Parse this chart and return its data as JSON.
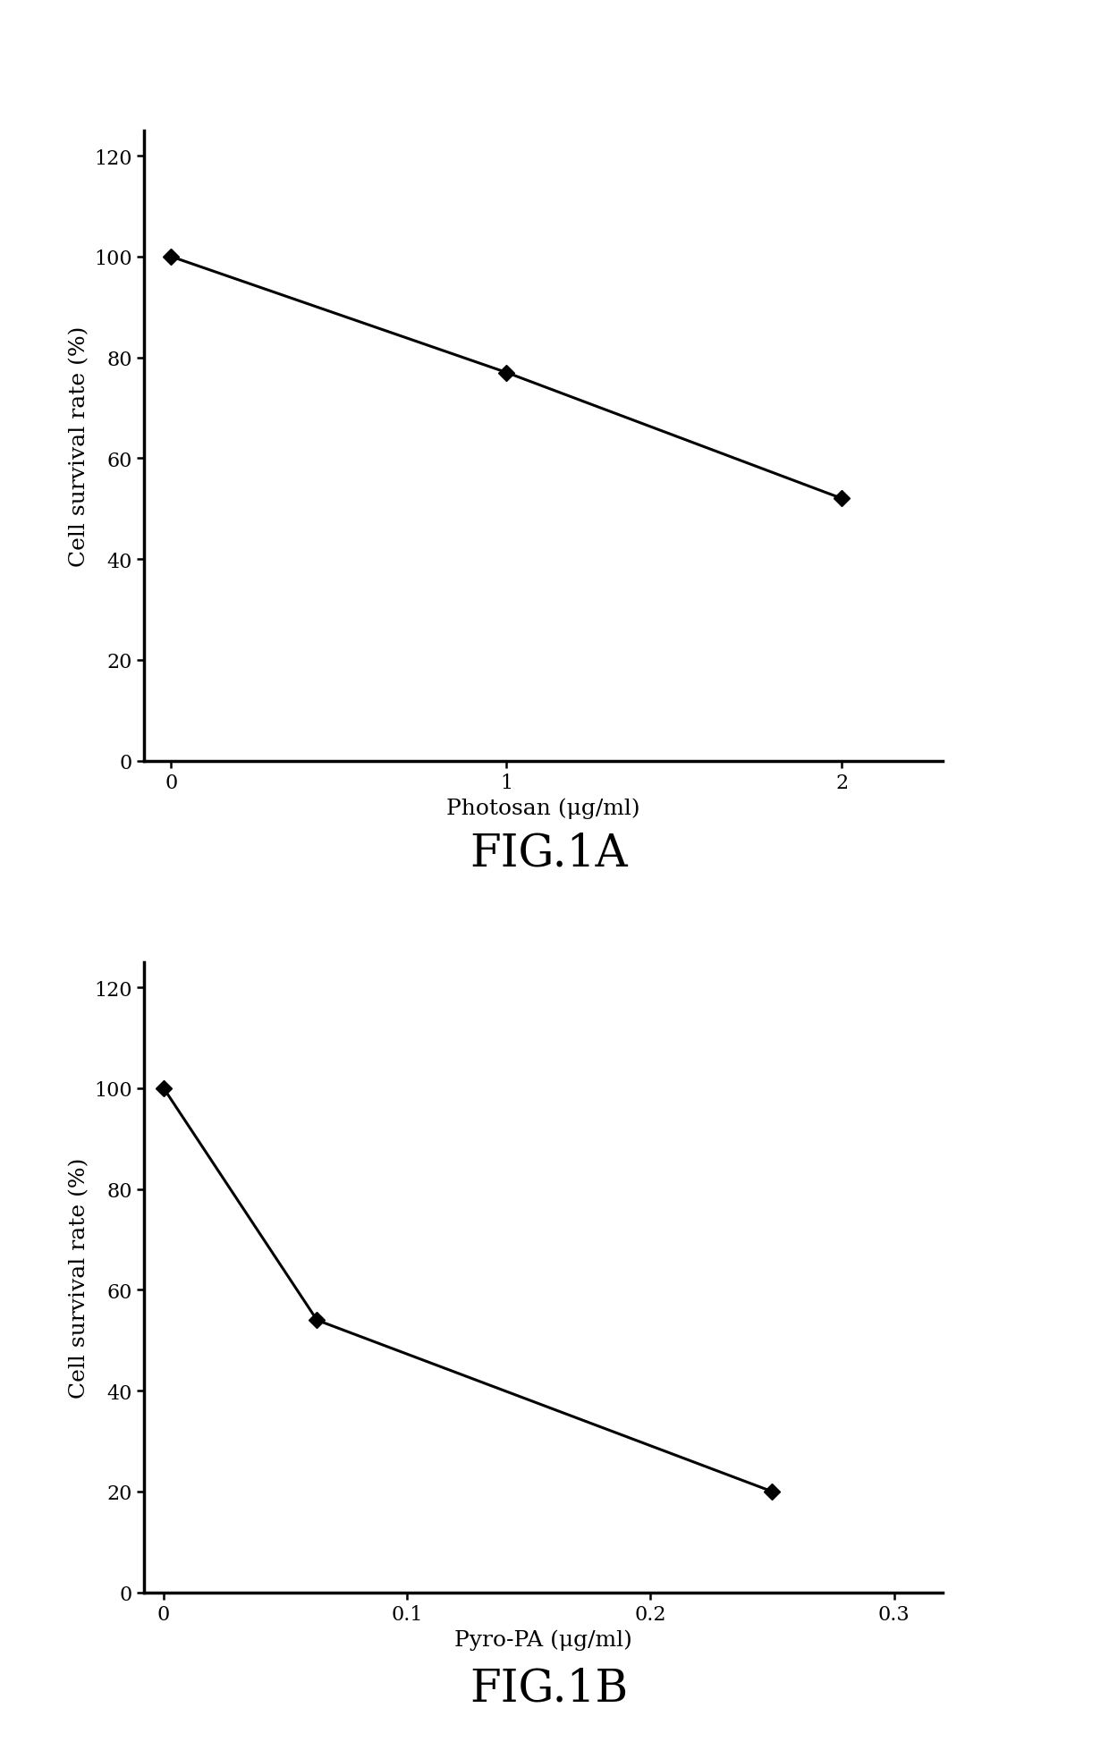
{
  "fig1a": {
    "x": [
      0,
      1,
      2
    ],
    "y": [
      100,
      77,
      52
    ],
    "xlabel": "Photosan (μg/ml)",
    "ylabel": "Cell survival rate (%)",
    "title": "FIG.1A",
    "xlim": [
      -0.08,
      2.3
    ],
    "ylim": [
      0,
      125
    ],
    "xticks": [
      0,
      1,
      2
    ],
    "yticks": [
      0,
      20,
      40,
      60,
      80,
      100,
      120
    ]
  },
  "fig1b": {
    "x": [
      0,
      0.063,
      0.25
    ],
    "y": [
      100,
      54,
      20
    ],
    "xlabel": "Pyro-PA (μg/ml)",
    "ylabel": "Cell survival rate (%)",
    "title": "FIG.1B",
    "xlim": [
      -0.008,
      0.32
    ],
    "ylim": [
      0,
      125
    ],
    "xticks": [
      0,
      0.1,
      0.2,
      0.3
    ],
    "yticks": [
      0,
      20,
      40,
      60,
      80,
      100,
      120
    ]
  },
  "line_color": "#000000",
  "marker": "D",
  "markersize": 9,
  "linewidth": 2.2,
  "background_color": "#ffffff",
  "title_fontsize": 36,
  "label_fontsize": 18,
  "tick_fontsize": 16,
  "axis_linewidth": 2.5
}
